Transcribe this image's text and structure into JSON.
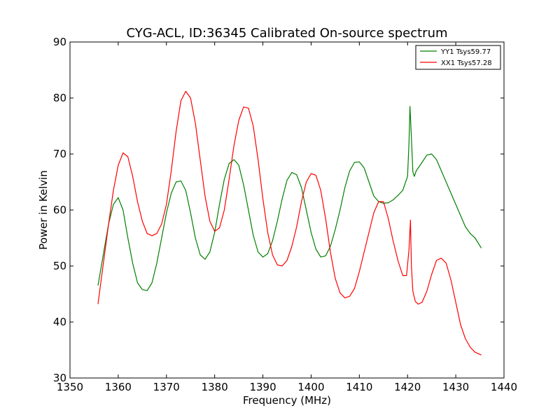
{
  "chart_data": {
    "type": "line",
    "title": "CYG-ACL, ID:36345 Calibrated On-source spectrum",
    "xlabel": "Frequency (MHz)",
    "ylabel": "Power in Kelvin",
    "xlim": [
      1350,
      1440
    ],
    "ylim": [
      30,
      90
    ],
    "xticks": [
      "1350",
      "1360",
      "1370",
      "1380",
      "1390",
      "1400",
      "1410",
      "1420",
      "1430",
      "1440"
    ],
    "yticks": [
      "30",
      "40",
      "50",
      "60",
      "70",
      "80",
      "90"
    ],
    "grid": false,
    "legend_position": "top-right",
    "series": [
      {
        "name": "YY1 Tsys59.77",
        "color": "#008000",
        "x": [
          1355.8,
          1357,
          1358,
          1359,
          1360,
          1361,
          1362,
          1363,
          1364,
          1365,
          1366,
          1367,
          1368,
          1369,
          1370,
          1371,
          1372,
          1373,
          1374,
          1375,
          1376,
          1377,
          1378,
          1379,
          1380,
          1381,
          1382,
          1383,
          1384,
          1385,
          1386,
          1387,
          1388,
          1389,
          1390,
          1391,
          1392,
          1393,
          1394,
          1395,
          1396,
          1397,
          1398,
          1399,
          1400,
          1401,
          1402,
          1403,
          1404,
          1405,
          1406,
          1407,
          1408,
          1409,
          1410,
          1411,
          1412,
          1413,
          1414,
          1415,
          1416,
          1417,
          1418,
          1419,
          1420,
          1420.3,
          1420.5,
          1420.8,
          1421.1,
          1421.4,
          1421.8,
          1423,
          1424,
          1425,
          1426,
          1427,
          1428,
          1429,
          1430,
          1431,
          1432,
          1433,
          1434,
          1435.3
        ],
        "values": [
          46.5,
          52.5,
          57.5,
          61,
          62.2,
          60,
          55,
          50.5,
          47,
          45.8,
          45.6,
          47,
          50.5,
          55,
          59.5,
          63,
          65,
          65.2,
          63.5,
          59.5,
          55,
          52,
          51.2,
          52.5,
          56,
          61,
          65.5,
          68.3,
          69,
          68,
          64.5,
          60,
          55.5,
          52.5,
          51.6,
          52.2,
          54.5,
          58,
          62,
          65.3,
          66.7,
          66.3,
          64,
          60,
          56,
          53,
          51.6,
          51.8,
          53.5,
          56.5,
          60,
          64,
          67,
          68.5,
          68.6,
          67.5,
          65,
          62.5,
          61.5,
          61.2,
          61.3,
          61.8,
          62.6,
          63.5,
          66,
          72,
          78.5,
          73,
          66.8,
          66,
          67,
          68.5,
          69.8,
          70,
          69,
          67,
          65,
          63,
          61,
          59,
          57,
          55.8,
          55,
          53.2
        ]
      },
      {
        "name": "XX1 Tsys57.28",
        "color": "#ff0000",
        "x": [
          1355.8,
          1357,
          1358,
          1359,
          1360,
          1361,
          1362,
          1363,
          1364,
          1365,
          1366,
          1367,
          1368,
          1369,
          1370,
          1371,
          1372,
          1373,
          1374,
          1375,
          1376,
          1377,
          1378,
          1379,
          1380,
          1381,
          1382,
          1383,
          1384,
          1385,
          1386,
          1387,
          1388,
          1389,
          1390,
          1391,
          1392,
          1393,
          1394,
          1395,
          1396,
          1397,
          1398,
          1399,
          1400,
          1401,
          1402,
          1403,
          1404,
          1405,
          1406,
          1407,
          1408,
          1409,
          1410,
          1411,
          1412,
          1413,
          1414,
          1415,
          1416,
          1417,
          1418,
          1419,
          1419.8,
          1420.3,
          1420.6,
          1420.8,
          1421.1,
          1421.6,
          1422.2,
          1423,
          1424,
          1425,
          1426,
          1427,
          1428,
          1429,
          1430,
          1431,
          1432,
          1433,
          1434,
          1435.3
        ],
        "values": [
          43.2,
          51,
          57.5,
          63.5,
          68,
          70.2,
          69.5,
          66,
          61.5,
          58,
          55.8,
          55.4,
          55.8,
          57.5,
          61,
          67,
          74,
          79.5,
          81.2,
          80,
          75.5,
          69,
          62.5,
          58,
          56.2,
          56.8,
          60,
          65.5,
          71.5,
          76,
          78.4,
          78.2,
          75,
          69,
          62,
          56,
          52,
          50.2,
          50,
          51,
          53.5,
          57,
          61.5,
          65,
          66.5,
          66.2,
          63.5,
          58.5,
          52.5,
          47.8,
          45.2,
          44.3,
          44.6,
          46,
          49,
          52.5,
          56,
          59.5,
          61.5,
          61.5,
          58.5,
          54.5,
          51,
          48.3,
          48.3,
          53,
          58.2,
          50,
          45.5,
          43.7,
          43.2,
          43.5,
          45.5,
          48.5,
          51,
          51.4,
          50.5,
          47.5,
          43.5,
          39.5,
          37,
          35.5,
          34.6,
          34.1
        ]
      }
    ]
  }
}
